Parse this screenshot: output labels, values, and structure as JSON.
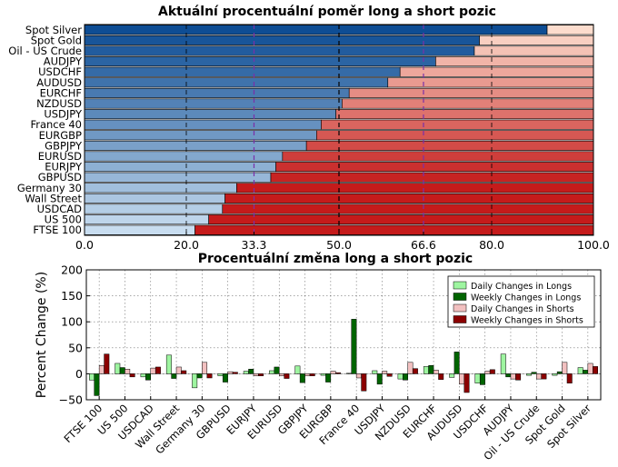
{
  "chart_data": [
    {
      "type": "bar",
      "orientation": "horizontal",
      "stacked": true,
      "title": "Aktuální procentuální poměr long a short pozic",
      "categories": [
        "Spot Silver",
        "Spot Gold",
        "Oil - US Crude",
        "AUDJPY",
        "USDCHF",
        "AUDUSD",
        "EURCHF",
        "NZDUSD",
        "USDJPY",
        "France 40",
        "EURGBP",
        "GBPJPY",
        "EURUSD",
        "EURJPY",
        "GBPUSD",
        "Germany 30",
        "Wall Street",
        "USDCAD",
        "US 500",
        "FTSE 100"
      ],
      "series": [
        {
          "values": [
            90.9,
            77.6,
            76.6,
            69.0,
            62.0,
            59.6,
            52.0,
            50.6,
            49.4,
            46.5,
            45.6,
            43.6,
            38.9,
            37.6,
            36.6,
            29.9,
            27.6,
            27.1,
            24.4,
            21.7
          ]
        }
      ],
      "xlim": [
        0,
        100
      ],
      "xticks": [
        "0.0",
        "20.0",
        "33.3",
        "50.0",
        "66.6",
        "80.0",
        "100.0"
      ],
      "xtick_values": [
        0,
        20,
        33.3,
        50,
        66.6,
        80,
        100
      ],
      "reference_lines": [
        33.3,
        50,
        66.6
      ],
      "grid": true
    },
    {
      "type": "bar",
      "title": "Procentuální změna long a short pozic",
      "ylabel": "Percent Change (%)",
      "ylim": [
        -50,
        200
      ],
      "yticks": [
        "200",
        "150",
        "100",
        "50",
        "0",
        "−50"
      ],
      "ytick_values": [
        200,
        150,
        100,
        50,
        0,
        -50
      ],
      "categories": [
        "FTSE 100",
        "US 500",
        "USDCAD",
        "Wall Street",
        "Germany 30",
        "GBPUSD",
        "EURJPY",
        "EURUSD",
        "GBPJPY",
        "EURGBP",
        "France 40",
        "USDJPY",
        "NZDUSD",
        "EURCHF",
        "AUDUSD",
        "USDCHF",
        "AUDJPY",
        "Oil - US Crude",
        "Spot Gold",
        "Spot Silver"
      ],
      "series": [
        {
          "name": "Daily Changes in Longs",
          "values": [
            -12,
            20,
            -6,
            36,
            -27,
            -4,
            5,
            6,
            15,
            -3,
            1,
            6,
            -10,
            14,
            -7,
            -18,
            38,
            -3,
            -3,
            12
          ],
          "color": "#9ef5a0"
        },
        {
          "name": "Weekly Changes in Longs",
          "values": [
            -42,
            12,
            -12,
            -9,
            -8,
            -16,
            9,
            13,
            -17,
            -16,
            105,
            -20,
            -12,
            16,
            42,
            -21,
            -6,
            3,
            4,
            7
          ],
          "color": "#006400"
        },
        {
          "name": "Daily Changes in Shorts",
          "values": [
            16,
            9,
            11,
            13,
            22,
            4,
            -4,
            -4,
            -4,
            5,
            -8,
            5,
            22,
            7,
            -20,
            5,
            -10,
            -10,
            22,
            20
          ],
          "color": "#f2c0c0"
        },
        {
          "name": "Weekly Changes in Shorts",
          "values": [
            38,
            -6,
            13,
            6,
            -8,
            3,
            -4,
            -9,
            -4,
            2,
            -33,
            -5,
            10,
            -11,
            -36,
            8,
            -12,
            -10,
            -18,
            14
          ],
          "color": "#8b0000"
        }
      ],
      "legend": "top-right",
      "grid": true
    }
  ]
}
